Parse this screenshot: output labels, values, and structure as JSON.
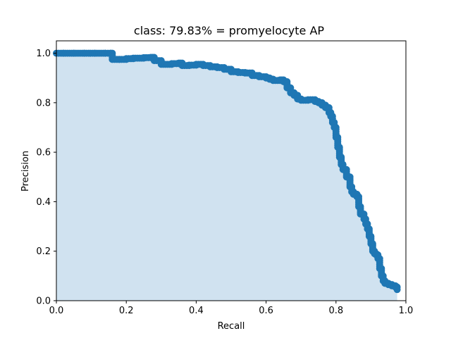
{
  "chart_data": {
    "type": "scatter",
    "title": "class: 79.83% = promyelocyte AP",
    "xlabel": "Recall",
    "ylabel": "Precision",
    "xlim": [
      0,
      1
    ],
    "ylim": [
      0,
      1.05
    ],
    "xticks": [
      "0.0",
      "0.2",
      "0.4",
      "0.6",
      "0.8",
      "1.0"
    ],
    "yticks": [
      "0.0",
      "0.2",
      "0.4",
      "0.6",
      "0.8",
      "1.0"
    ],
    "grid": false,
    "area_fill": true,
    "colors": {
      "marker": "#1f77b4",
      "fill": "#d0e2f0"
    },
    "series": [
      {
        "x": [
          0.0,
          0.02,
          0.05,
          0.08,
          0.11,
          0.14,
          0.155,
          0.16,
          0.18,
          0.2,
          0.22,
          0.25,
          0.27,
          0.28,
          0.3,
          0.33,
          0.35,
          0.36,
          0.38,
          0.4,
          0.42,
          0.44,
          0.46,
          0.48,
          0.5,
          0.52,
          0.54,
          0.56,
          0.58,
          0.6,
          0.61,
          0.62,
          0.64,
          0.65,
          0.66,
          0.67,
          0.68,
          0.69,
          0.7,
          0.72,
          0.74,
          0.75,
          0.76,
          0.77,
          0.78,
          0.785,
          0.79,
          0.795,
          0.8,
          0.805,
          0.81,
          0.815,
          0.82,
          0.83,
          0.84,
          0.845,
          0.85,
          0.86,
          0.865,
          0.87,
          0.88,
          0.885,
          0.89,
          0.895,
          0.9,
          0.905,
          0.91,
          0.915,
          0.92,
          0.925,
          0.93,
          0.935,
          0.94,
          0.95,
          0.96,
          0.97,
          0.975
        ],
        "y": [
          1.0,
          1.0,
          1.0,
          1.0,
          1.0,
          1.0,
          1.0,
          0.975,
          0.975,
          0.978,
          0.98,
          0.982,
          0.983,
          0.97,
          0.955,
          0.958,
          0.96,
          0.95,
          0.952,
          0.955,
          0.95,
          0.945,
          0.942,
          0.935,
          0.925,
          0.922,
          0.92,
          0.91,
          0.905,
          0.9,
          0.895,
          0.89,
          0.892,
          0.885,
          0.86,
          0.84,
          0.83,
          0.815,
          0.81,
          0.812,
          0.805,
          0.8,
          0.79,
          0.78,
          0.76,
          0.745,
          0.72,
          0.7,
          0.66,
          0.62,
          0.58,
          0.55,
          0.53,
          0.5,
          0.46,
          0.44,
          0.43,
          0.42,
          0.38,
          0.35,
          0.33,
          0.31,
          0.29,
          0.26,
          0.23,
          0.2,
          0.19,
          0.185,
          0.17,
          0.13,
          0.1,
          0.08,
          0.07,
          0.065,
          0.06,
          0.055,
          0.045
        ]
      }
    ]
  }
}
